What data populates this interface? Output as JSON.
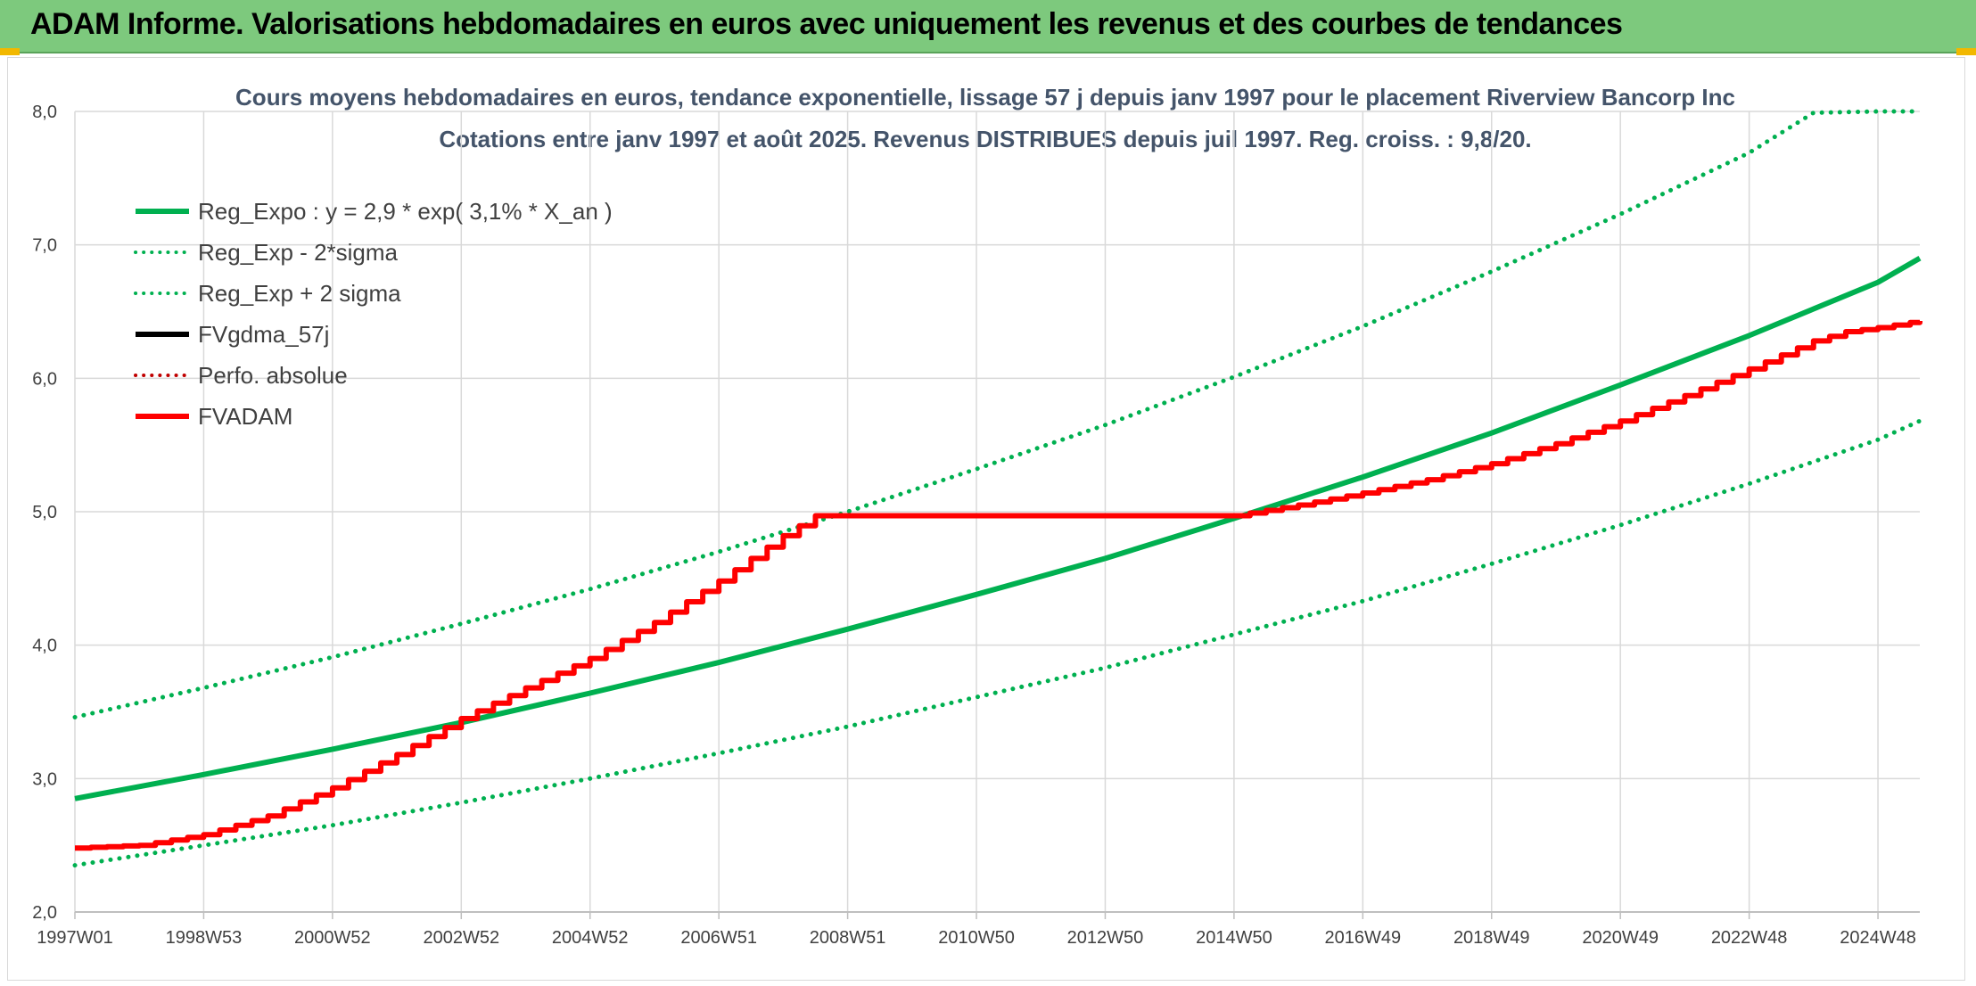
{
  "banner": {
    "title": "ADAM Informe. Valorisations hebdomadaires en euros avec uniquement les revenus et des courbes de tendances"
  },
  "colors": {
    "banner_bg": "#7dc97d",
    "trend_green": "#00b050",
    "adam_red": "#ff0000",
    "black": "#000000",
    "grid": "#d9d9d9"
  },
  "chart_data": {
    "type": "line",
    "title": "Cours moyens hebdomadaires en euros, tendance exponentielle, lissage 57 j depuis janv 1997 pour le placement Riverview Bancorp Inc",
    "subtitle": "Cotations entre janv 1997 et août 2025. Revenus DISTRIBUES depuis juil 1997. Reg. croiss. : 9,8/20.",
    "xlabel": "",
    "ylabel": "",
    "xlim": [
      1997.0,
      2025.65
    ],
    "ylim": [
      2.0,
      8.0
    ],
    "yticks": [
      "2,0",
      "3,0",
      "4,0",
      "5,0",
      "6,0",
      "7,0",
      "8,0"
    ],
    "xtick_labels": [
      "1997W01",
      "1998W53",
      "2000W52",
      "2002W52",
      "2004W52",
      "2006W51",
      "2008W51",
      "2010W50",
      "2012W50",
      "2014W50",
      "2016W49",
      "2018W49",
      "2020W49",
      "2022W48",
      "2024W48"
    ],
    "xtick_years": [
      1997.0,
      1999.0,
      2001.0,
      2003.0,
      2005.0,
      2007.0,
      2009.0,
      2011.0,
      2013.0,
      2015.0,
      2017.0,
      2019.0,
      2021.0,
      2023.0,
      2025.0
    ],
    "grid": true,
    "legend_position": "top-left",
    "legend": [
      {
        "label": "Reg_Expo : y = 2,9 * exp( 3,1% *  X_an )",
        "color": "#00b050",
        "style": "solid"
      },
      {
        "label": "Reg_Exp - 2*sigma",
        "color": "#00b050",
        "style": "dotted"
      },
      {
        "label": "Reg_Exp + 2 sigma",
        "color": "#00b050",
        "style": "dotted"
      },
      {
        "label": "FVgdma_57j",
        "color": "#000000",
        "style": "solid"
      },
      {
        "label": "Perfo. absolue",
        "color": "#c00000",
        "style": "dotted"
      },
      {
        "label": "FVADAM",
        "color": "#ff0000",
        "style": "solid"
      }
    ],
    "series": [
      {
        "name": "Reg_Expo : y = 2,9 * exp( 3,1% *  X_an )",
        "x": [
          1997.0,
          1999.0,
          2001.0,
          2003.0,
          2005.0,
          2007.0,
          2009.0,
          2011.0,
          2013.0,
          2015.0,
          2017.0,
          2019.0,
          2021.0,
          2023.0,
          2025.0,
          2025.65
        ],
        "y": [
          2.85,
          3.03,
          3.22,
          3.42,
          3.64,
          3.87,
          4.12,
          4.38,
          4.65,
          4.95,
          5.26,
          5.59,
          5.95,
          6.32,
          6.72,
          6.9
        ]
      },
      {
        "name": "Reg_Exp - 2*sigma",
        "x": [
          1997.0,
          1999.0,
          2001.0,
          2003.0,
          2005.0,
          2007.0,
          2009.0,
          2011.0,
          2013.0,
          2015.0,
          2017.0,
          2019.0,
          2021.0,
          2023.0,
          2025.0,
          2025.65
        ],
        "y": [
          2.35,
          2.5,
          2.65,
          2.82,
          3.0,
          3.19,
          3.39,
          3.61,
          3.83,
          4.08,
          4.33,
          4.61,
          4.9,
          5.21,
          5.54,
          5.68
        ]
      },
      {
        "name": "Reg_Exp + 2 sigma",
        "x": [
          1997.0,
          1999.0,
          2001.0,
          2003.0,
          2005.0,
          2007.0,
          2009.0,
          2011.0,
          2013.0,
          2015.0,
          2017.0,
          2019.0,
          2021.0,
          2023.0,
          2024.0,
          2025.0,
          2025.65
        ],
        "y": [
          3.46,
          3.68,
          3.91,
          4.16,
          4.42,
          4.7,
          5.0,
          5.32,
          5.65,
          6.01,
          6.39,
          6.8,
          7.23,
          7.69,
          7.99,
          8.0,
          8.0
        ]
      },
      {
        "name": "FVADAM",
        "x": [
          1997.0,
          1998.0,
          1999.0,
          2000.0,
          2001.0,
          2002.0,
          2003.0,
          2004.0,
          2005.0,
          2006.0,
          2007.0,
          2008.0,
          2008.5,
          2009.0,
          2011.0,
          2013.0,
          2015.0,
          2016.0,
          2017.0,
          2018.0,
          2019.0,
          2020.0,
          2021.0,
          2022.0,
          2023.0,
          2024.0,
          2024.5,
          2025.0,
          2025.65
        ],
        "y": [
          2.48,
          2.5,
          2.58,
          2.72,
          2.93,
          3.18,
          3.45,
          3.68,
          3.9,
          4.17,
          4.48,
          4.82,
          4.97,
          4.97,
          4.97,
          4.97,
          4.97,
          5.05,
          5.14,
          5.24,
          5.36,
          5.51,
          5.68,
          5.87,
          6.07,
          6.28,
          6.35,
          6.38,
          6.43
        ]
      }
    ]
  }
}
